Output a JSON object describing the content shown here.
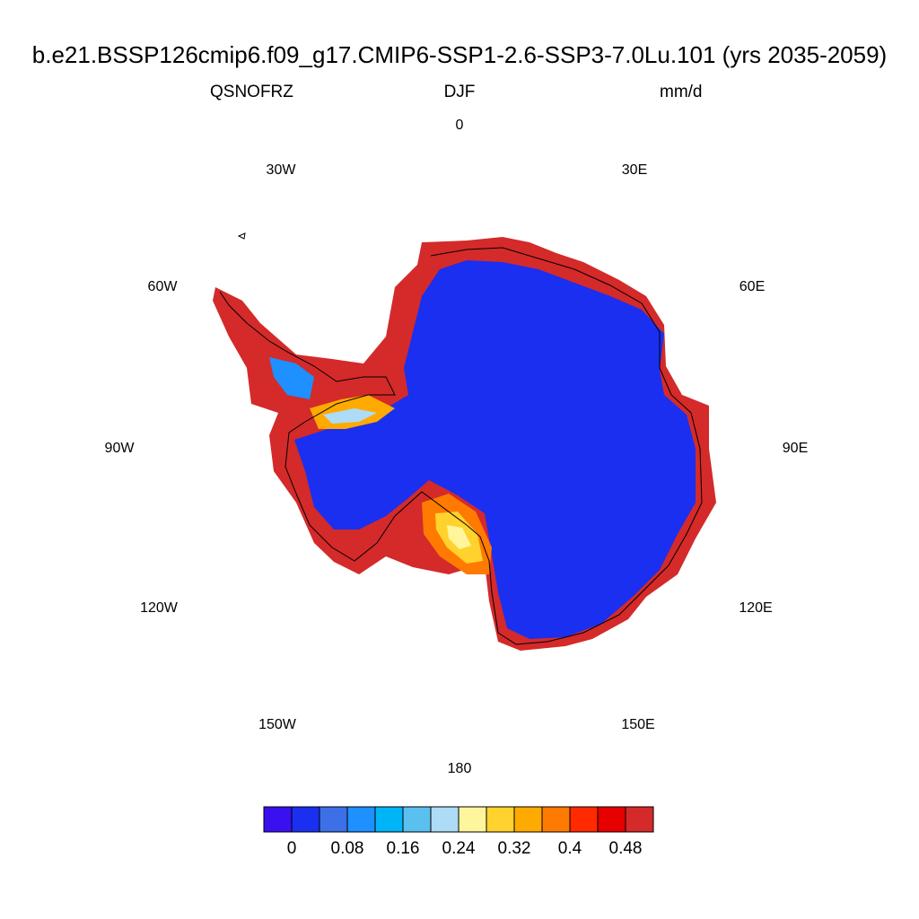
{
  "title": "b.e21.BSSP126cmip6.f09_g17.CMIP6-SSP1-2.6-SSP3-7.0Lu.101 (yrs 2035-2059)",
  "subtitle": {
    "variable": "QSNOFRZ",
    "season": "DJF",
    "units": "mm/d"
  },
  "longitude_labels": {
    "lon_0": "0",
    "lon_30e": "30E",
    "lon_60e": "60E",
    "lon_90e": "90E",
    "lon_120e": "120E",
    "lon_150e": "150E",
    "lon_180": "180",
    "lon_150w": "150W",
    "lon_120w": "120W",
    "lon_90w": "90W",
    "lon_60w": "60W",
    "lon_30w": "30W"
  },
  "colorbar": {
    "colors": [
      "#3a10f0",
      "#1a2ff0",
      "#3d6fe6",
      "#1e90ff",
      "#00b4f8",
      "#5ac0f0",
      "#aedbf5",
      "#fff59d",
      "#ffd22e",
      "#ffaa00",
      "#ff7a00",
      "#ff2a00",
      "#e60000",
      "#d42a2a"
    ],
    "labels": [
      "0",
      "0.08",
      "0.16",
      "0.24",
      "0.32",
      "0.4",
      "0.48"
    ]
  },
  "map": {
    "projection": "south-polar-stereographic",
    "interior_value_color": "#1a2ff0",
    "margin_value_color": "#d42a2a"
  }
}
